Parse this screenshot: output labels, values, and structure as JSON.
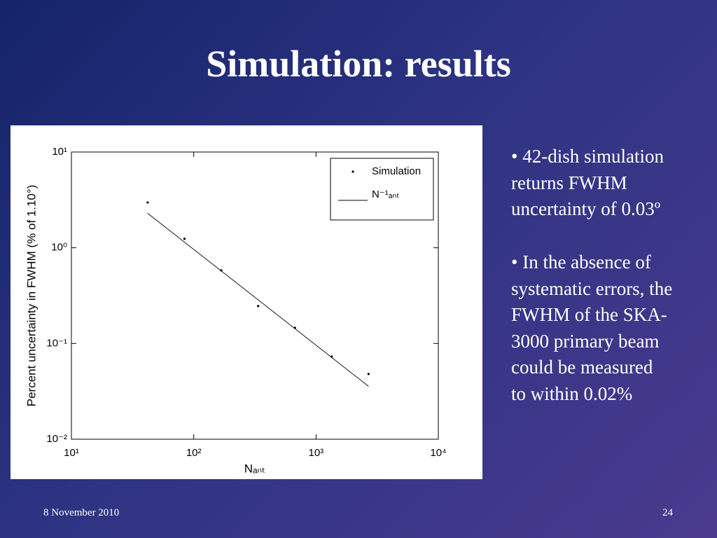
{
  "slide": {
    "title": "Simulation: results",
    "bullets": [
      [
        "• 42-dish simulation",
        "returns FWHM",
        "uncertainty of 0.03º"
      ],
      [
        "• In the absence of",
        "systematic errors, the",
        "FWHM of the SKA-",
        "3000 primary beam",
        "could be measured",
        "to within 0.02%"
      ]
    ],
    "date": "8 November 2010",
    "page": "24"
  },
  "chart_data": {
    "type": "scatter",
    "log_x": true,
    "log_y": true,
    "xlabel": "Nₐₙₜ",
    "ylabel": "Percent uncertainty in FWHM (% of 1.10°)",
    "xlim": [
      10,
      10000
    ],
    "xticks": [
      {
        "value": 10,
        "label": "10¹"
      },
      {
        "value": 100,
        "label": "10²"
      },
      {
        "value": 1000,
        "label": "10³"
      },
      {
        "value": 10000,
        "label": "10⁴"
      }
    ],
    "ylim": [
      0.01,
      10
    ],
    "yticks": [
      {
        "value": 0.01,
        "label": "10⁻²"
      },
      {
        "value": 0.1,
        "label": "10⁻¹"
      },
      {
        "value": 1,
        "label": "10⁰"
      },
      {
        "value": 10,
        "label": "10¹"
      }
    ],
    "legend": "upper right",
    "series": [
      {
        "name": "Simulation",
        "color": "#000000",
        "style": "marker",
        "x": [
          42,
          84,
          168,
          336,
          672,
          1344,
          2688
        ],
        "values": [
          2.97,
          1.24,
          0.58,
          0.246,
          0.146,
          0.073,
          0.048
        ]
      },
      {
        "name": "N⁻¹ₐₙₜ",
        "color": "#000000",
        "style": "line",
        "x": [
          42,
          2688
        ],
        "values": [
          2.29,
          0.0357
        ]
      }
    ]
  }
}
